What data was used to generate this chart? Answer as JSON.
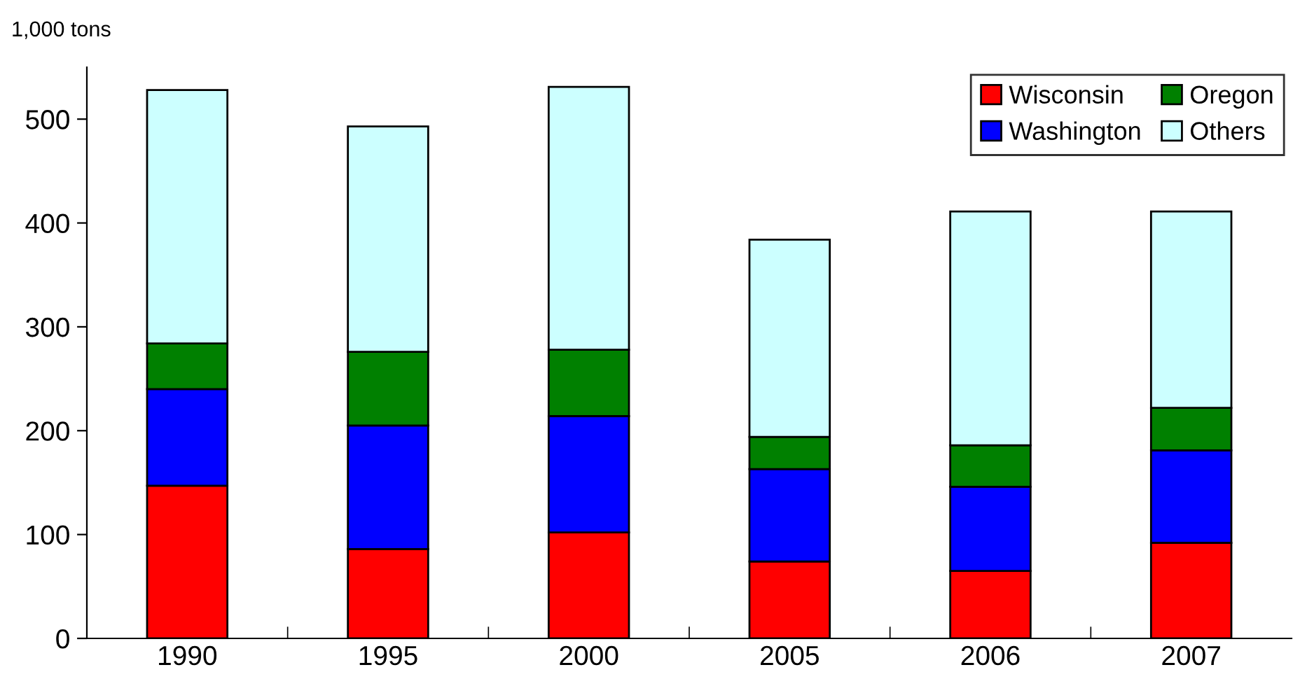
{
  "chart_data": {
    "type": "bar",
    "stacked": true,
    "ylabel": "1,000 tons",
    "categories": [
      "1990",
      "1995",
      "2000",
      "2005",
      "2006",
      "2007"
    ],
    "series": [
      {
        "name": "Wisconsin",
        "color": "#ff0000",
        "values": [
          147,
          86,
          102,
          74,
          65,
          92
        ]
      },
      {
        "name": "Washington",
        "color": "#0000ff",
        "values": [
          93,
          119,
          112,
          89,
          81,
          89
        ]
      },
      {
        "name": "Oregon",
        "color": "#008000",
        "values": [
          44,
          71,
          64,
          31,
          40,
          41
        ]
      },
      {
        "name": "Others",
        "color": "#ccffff",
        "values": [
          244,
          217,
          253,
          190,
          225,
          189
        ]
      }
    ],
    "ylim": [
      0,
      550
    ],
    "yticks": [
      0,
      100,
      200,
      300,
      400,
      500
    ],
    "grid": false,
    "legend": "top right"
  }
}
